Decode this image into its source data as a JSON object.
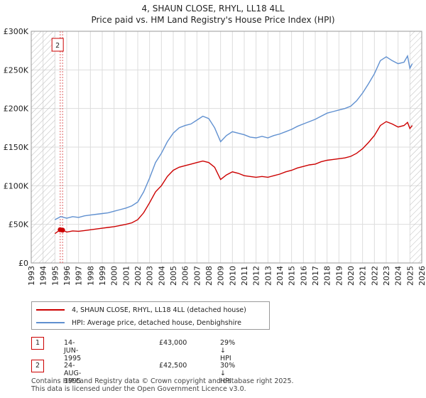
{
  "title_line1": "4, SHAUN CLOSE, RHYL, LL18 4LL",
  "title_line2": "Price paid vs. HM Land Registry's House Price Index (HPI)",
  "colors": {
    "property": "#cc0000",
    "hpi": "#6090d0",
    "grid": "#dddddd",
    "hatch": "#bbbbbb",
    "marker_line": "#e06060"
  },
  "chart_data": {
    "type": "line",
    "xlim": [
      1993,
      2026
    ],
    "ylim": [
      0,
      300000
    ],
    "x_ticks": [
      1993,
      1994,
      1995,
      1996,
      1997,
      1998,
      1999,
      2000,
      2001,
      2002,
      2003,
      2004,
      2005,
      2006,
      2007,
      2008,
      2009,
      2010,
      2011,
      2012,
      2013,
      2014,
      2015,
      2016,
      2017,
      2018,
      2019,
      2020,
      2021,
      2022,
      2023,
      2024,
      2025,
      2026
    ],
    "y_ticks": [
      {
        "value": 0,
        "label": "£0"
      },
      {
        "value": 50000,
        "label": "£50K"
      },
      {
        "value": 100000,
        "label": "£100K"
      },
      {
        "value": 150000,
        "label": "£150K"
      },
      {
        "value": 200000,
        "label": "£200K"
      },
      {
        "value": 250000,
        "label": "£250K"
      },
      {
        "value": 300000,
        "label": "£300K"
      }
    ],
    "hatched_ranges": [
      [
        1993,
        1995.0
      ],
      [
        2025.0,
        2026
      ]
    ],
    "series": [
      {
        "name": "4, SHAUN CLOSE, RHYL, LL18 4LL (detached house)",
        "key": "property",
        "x": [
          1995.0,
          1995.45,
          1995.65,
          1996.0,
          1996.5,
          1997.0,
          1997.5,
          1998.0,
          1998.5,
          1999.0,
          1999.5,
          2000.0,
          2000.5,
          2001.0,
          2001.5,
          2002.0,
          2002.5,
          2003.0,
          2003.5,
          2004.0,
          2004.5,
          2005.0,
          2005.5,
          2006.0,
          2006.5,
          2007.0,
          2007.5,
          2008.0,
          2008.5,
          2009.0,
          2009.5,
          2010.0,
          2010.5,
          2011.0,
          2011.5,
          2012.0,
          2012.5,
          2013.0,
          2013.5,
          2014.0,
          2014.5,
          2015.0,
          2015.5,
          2016.0,
          2016.5,
          2017.0,
          2017.5,
          2018.0,
          2018.5,
          2019.0,
          2019.5,
          2020.0,
          2020.5,
          2021.0,
          2021.5,
          2022.0,
          2022.5,
          2023.0,
          2023.5,
          2024.0,
          2024.5,
          2024.8,
          2025.0,
          2025.2
        ],
        "y": [
          38000,
          43000,
          42500,
          40000,
          41500,
          41000,
          42000,
          43000,
          44000,
          45000,
          46000,
          47000,
          48500,
          50000,
          52000,
          56000,
          65000,
          78000,
          92000,
          100000,
          112000,
          120000,
          124000,
          126000,
          128000,
          130000,
          132000,
          130000,
          124000,
          108000,
          114000,
          118000,
          116000,
          113000,
          112000,
          111000,
          112000,
          111000,
          113000,
          115000,
          118000,
          120000,
          123000,
          125000,
          127000,
          128000,
          131000,
          133000,
          134000,
          135000,
          136000,
          138000,
          142000,
          148000,
          156000,
          165000,
          178000,
          183000,
          180000,
          176000,
          178000,
          182000,
          174000,
          178000
        ]
      },
      {
        "name": "HPI: Average price, detached house, Denbighshire",
        "key": "hpi",
        "x": [
          1995.0,
          1995.5,
          1996.0,
          1996.5,
          1997.0,
          1997.5,
          1998.0,
          1998.5,
          1999.0,
          1999.5,
          2000.0,
          2000.5,
          2001.0,
          2001.5,
          2002.0,
          2002.5,
          2003.0,
          2003.5,
          2004.0,
          2004.5,
          2005.0,
          2005.5,
          2006.0,
          2006.5,
          2007.0,
          2007.5,
          2008.0,
          2008.5,
          2009.0,
          2009.5,
          2010.0,
          2010.5,
          2011.0,
          2011.5,
          2012.0,
          2012.5,
          2013.0,
          2013.5,
          2014.0,
          2014.5,
          2015.0,
          2015.5,
          2016.0,
          2016.5,
          2017.0,
          2017.5,
          2018.0,
          2018.5,
          2019.0,
          2019.5,
          2020.0,
          2020.5,
          2021.0,
          2021.5,
          2022.0,
          2022.5,
          2023.0,
          2023.5,
          2024.0,
          2024.5,
          2024.8,
          2025.0,
          2025.2
        ],
        "y": [
          56000,
          60000,
          58000,
          60000,
          59000,
          61000,
          62000,
          63000,
          64000,
          65000,
          67000,
          69000,
          71000,
          74000,
          79000,
          92000,
          110000,
          130000,
          142000,
          157000,
          168000,
          175000,
          178000,
          180000,
          185000,
          190000,
          187000,
          175000,
          157000,
          165000,
          170000,
          168000,
          166000,
          163000,
          162000,
          164000,
          162000,
          165000,
          167000,
          170000,
          173000,
          177000,
          180000,
          183000,
          186000,
          190000,
          194000,
          196000,
          198000,
          200000,
          203000,
          210000,
          220000,
          232000,
          245000,
          262000,
          267000,
          262000,
          258000,
          260000,
          268000,
          252000,
          258000
        ]
      }
    ],
    "sales": [
      {
        "marker": "1",
        "x": 1995.45,
        "y": 43000
      },
      {
        "marker": "2",
        "x": 1995.65,
        "y": 42500
      }
    ],
    "callout_label": "2"
  },
  "legend": [
    {
      "key": "property",
      "label": "4, SHAUN CLOSE, RHYL, LL18 4LL (detached house)"
    },
    {
      "key": "hpi",
      "label": "HPI: Average price, detached house, Denbighshire"
    }
  ],
  "sales_table": [
    {
      "num": "1",
      "date": "14-JUN-1995",
      "price": "£43,000",
      "hpi": "29% ↓ HPI"
    },
    {
      "num": "2",
      "date": "24-AUG-1995",
      "price": "£42,500",
      "hpi": "30% ↓ HPI"
    }
  ],
  "footer": {
    "line1": "Contains HM Land Registry data © Crown copyright and database right 2025.",
    "line2": "This data is licensed under the Open Government Licence v3.0."
  }
}
